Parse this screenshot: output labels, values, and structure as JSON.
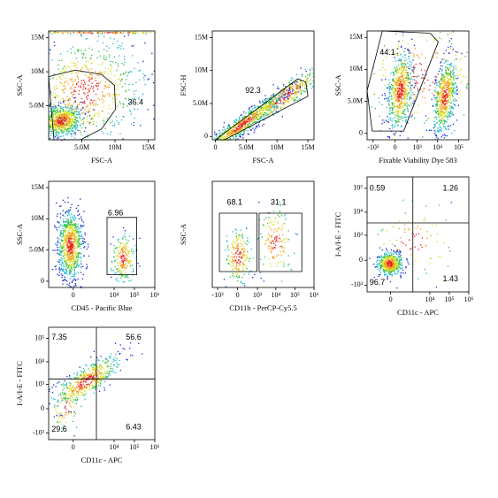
{
  "chart_data": [
    {
      "type": "scatter",
      "xlabel": "FSC-A",
      "ylabel": "SSC-A",
      "xscale": "linear",
      "yscale": "linear",
      "xlim": [
        0,
        16000000
      ],
      "ylim": [
        0,
        16000000
      ],
      "xticks": [
        {
          "value": 5000000,
          "label": "5.0M"
        },
        {
          "value": 10000000,
          "label": "10M"
        },
        {
          "value": 15000000,
          "label": "15M"
        }
      ],
      "yticks": [
        {
          "value": 5000000,
          "label": "5.0M"
        },
        {
          "value": 10000000,
          "label": "10M"
        },
        {
          "value": 15000000,
          "label": "15M"
        }
      ],
      "gate_values": [
        36.4
      ]
    },
    {
      "type": "scatter",
      "xlabel": "FSC-A",
      "ylabel": "FSC-H",
      "xscale": "linear",
      "yscale": "linear",
      "xlim": [
        -500000,
        16000000
      ],
      "ylim": [
        -500000,
        16000000
      ],
      "xticks": [
        0,
        {
          "value": 5000000,
          "label": "5.0M"
        },
        {
          "value": 10000000,
          "label": "10M"
        },
        {
          "value": 15000000,
          "label": "15M"
        }
      ],
      "yticks": [
        0,
        {
          "value": 5000000,
          "label": "5.0M"
        },
        {
          "value": 10000000,
          "label": "10M"
        },
        {
          "value": 15000000,
          "label": "15M"
        }
      ],
      "gate_values": [
        92.3
      ]
    },
    {
      "type": "scatter",
      "xlabel": "Fixable Viability Dye 583",
      "ylabel": "SSC-A",
      "xscale": "biex",
      "yscale": "linear",
      "xlim": [
        -2000,
        300000
      ],
      "ylim": [
        -1000000,
        16000000
      ],
      "xticks": [
        {
          "value": -1000,
          "label": "-10³"
        },
        0,
        {
          "value": 1000,
          "label": "10³"
        },
        {
          "value": 10000,
          "label": "10⁴"
        },
        {
          "value": 100000,
          "label": "10⁵"
        }
      ],
      "yticks": [
        0,
        {
          "value": 5000000,
          "label": "5.0M"
        },
        {
          "value": 10000000,
          "label": "10M"
        },
        {
          "value": 15000000,
          "label": "15M"
        }
      ],
      "gate_values": [
        44.1
      ]
    },
    {
      "type": "scatter",
      "xlabel": "CD45 - Pacific Blue",
      "ylabel": "SSC-A",
      "xscale": "biex",
      "yscale": "linear",
      "xlim": [
        -1500,
        1000000
      ],
      "ylim": [
        -1000000,
        16000000
      ],
      "xticks": [
        0,
        {
          "value": 10000,
          "label": "10⁴"
        },
        {
          "value": 100000,
          "label": "10⁵"
        },
        {
          "value": 1000000,
          "label": "10⁶"
        }
      ],
      "yticks": [
        0,
        {
          "value": 5000000,
          "label": "5.0M"
        },
        {
          "value": 10000000,
          "label": "10M"
        },
        {
          "value": 15000000,
          "label": "15M"
        }
      ],
      "gate_values": [
        6.96
      ]
    },
    {
      "type": "scatter",
      "xlabel": "CD11b - PerCP-Cy5.5",
      "ylabel": "SSC-A",
      "xscale": "biex",
      "xlim": [
        -2000,
        1000000
      ],
      "xticks": [
        {
          "value": -1000,
          "label": "-10³"
        },
        0,
        {
          "value": 1000,
          "label": "10³"
        },
        {
          "value": 10000,
          "label": "10⁴"
        },
        {
          "value": 100000,
          "label": "10⁵"
        },
        {
          "value": 1000000,
          "label": "10⁶"
        }
      ],
      "gate_values": [
        68.1,
        31.1
      ]
    },
    {
      "type": "scatter",
      "xlabel": "CD11c - APC",
      "ylabel": "I-A/I-E - FITC",
      "xscale": "biex",
      "yscale": "biex",
      "xlim": [
        -1500,
        1000000
      ],
      "ylim": [
        -2000,
        300000
      ],
      "xticks": [
        0,
        {
          "value": 10000,
          "label": "10⁴"
        },
        {
          "value": 100000,
          "label": "10⁵"
        },
        {
          "value": 1000000,
          "label": "10⁶"
        }
      ],
      "yticks": [
        {
          "value": -1000,
          "label": "-10³"
        },
        0,
        {
          "value": 1000,
          "label": "10³"
        },
        {
          "value": 10000,
          "label": "10⁴"
        },
        {
          "value": 100000,
          "label": "10⁵"
        }
      ],
      "gate_values": [
        0.59,
        1.26,
        96.7,
        1.43
      ]
    },
    {
      "type": "scatter",
      "xlabel": "CD11c - APC",
      "ylabel": "I-A/I-E - FITC",
      "xscale": "biex",
      "yscale": "biex",
      "xlim": [
        -1500,
        1000000
      ],
      "ylim": [
        -2000,
        300000
      ],
      "xticks": [
        0,
        {
          "value": 10000,
          "label": "10⁴"
        },
        {
          "value": 100000,
          "label": "10⁵"
        },
        {
          "value": 1000000,
          "label": "10⁶"
        }
      ],
      "yticks": [
        {
          "value": -1000,
          "label": "-10³"
        },
        0,
        {
          "value": 1000,
          "label": "10³"
        },
        {
          "value": 10000,
          "label": "10⁴"
        },
        {
          "value": 100000,
          "label": "10⁵"
        }
      ],
      "gate_values": [
        7.35,
        56.6,
        29.6,
        6.43
      ]
    }
  ]
}
